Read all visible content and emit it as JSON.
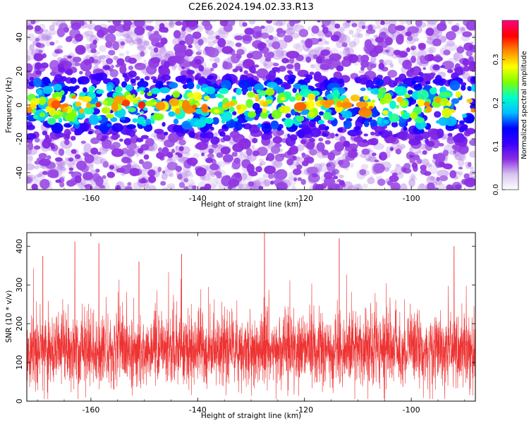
{
  "title": "C2E6.2024.194.02.33.R13",
  "chart_data": [
    {
      "type": "heatmap",
      "xlabel": "Height of straight line (km)",
      "ylabel": "Frequency (Hz)",
      "xlim": [
        -172,
        -88
      ],
      "ylim": [
        -50,
        50
      ],
      "xticks": [
        -160,
        -140,
        -120,
        -100
      ],
      "yticks": [
        -40,
        -20,
        0,
        20,
        40
      ],
      "colorbar": {
        "label": "Normalized spectral amplitude",
        "range": [
          0.0,
          0.39
        ],
        "ticks": [
          0.0,
          0.1,
          0.2,
          0.3
        ],
        "tick_labels": [
          "0.0",
          "0.1",
          "0.2",
          "0.3"
        ],
        "colormap": [
          "#ffffff",
          "#d8c4f0",
          "#8a2be2",
          "#3a00ff",
          "#0000ff",
          "#00bfff",
          "#00ffcc",
          "#7fff00",
          "#ffff00",
          "#ff8c00",
          "#ff0000",
          "#ff0080"
        ]
      },
      "description_of_values": {
        "band_center_hz": 0,
        "band_halfwidth_hz": 12,
        "band_peak_amplitude": 0.22,
        "background_amplitude": 0.03
      }
    },
    {
      "type": "line",
      "xlabel": "Height of straight line (km)",
      "ylabel": "SNR (10 * v/v)",
      "xlim": [
        -172,
        -88
      ],
      "ylim": [
        0,
        435
      ],
      "xticks": [
        -160,
        -140,
        -120,
        -100
      ],
      "yticks": [
        0,
        100,
        200,
        300,
        400
      ],
      "color": "#ee3333",
      "summary": {
        "baseline": 130,
        "typical_range": [
          40,
          260
        ],
        "peaks": [
          {
            "x": -127.5,
            "y": 435
          },
          {
            "x": -113.5,
            "y": 420
          },
          {
            "x": -163,
            "y": 412
          },
          {
            "x": -158.5,
            "y": 408
          },
          {
            "x": -92,
            "y": 400
          },
          {
            "x": -169,
            "y": 375
          },
          {
            "x": -143,
            "y": 380
          },
          {
            "x": -151,
            "y": 360
          }
        ]
      }
    }
  ]
}
